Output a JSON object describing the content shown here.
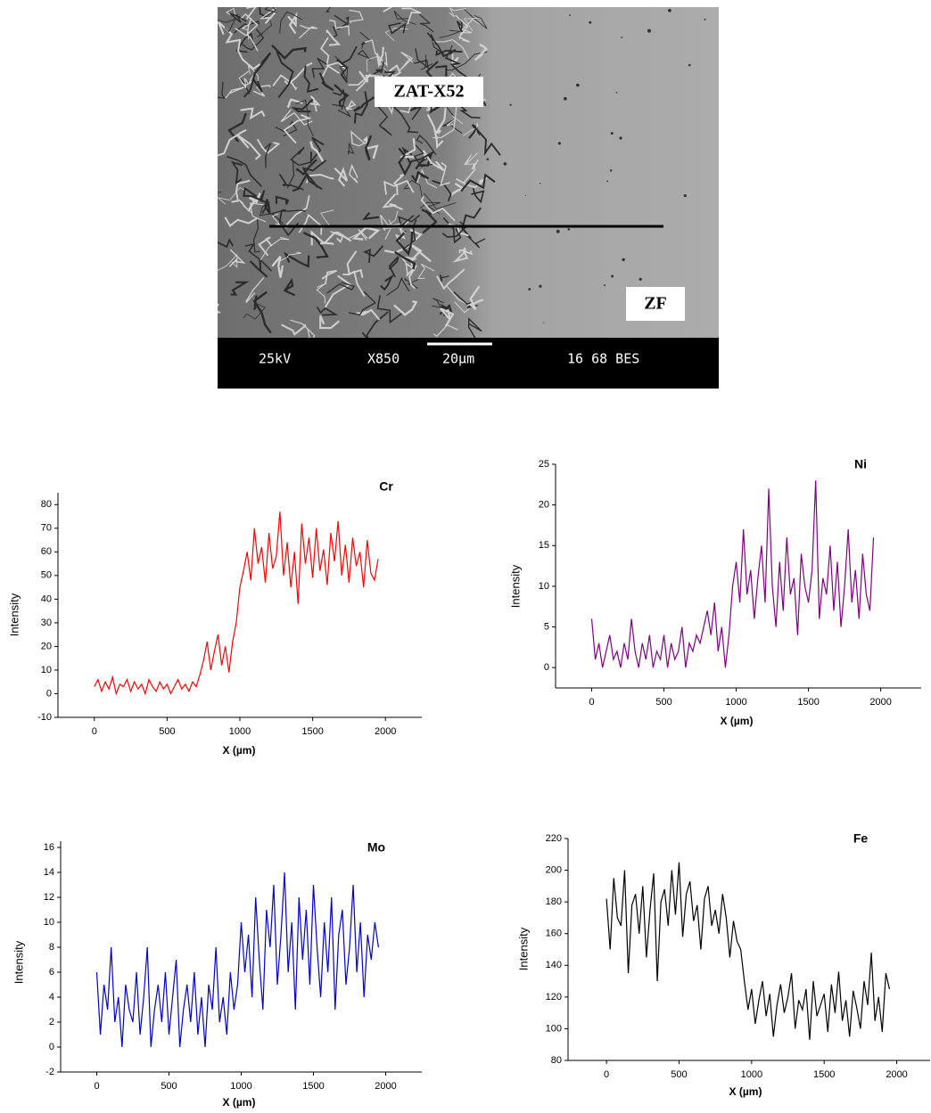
{
  "image": {
    "labels": [
      "ZAT-X52",
      "ZF"
    ],
    "info_bar": [
      "25kV",
      "X850",
      "20µm",
      "16 68 BES"
    ]
  },
  "chart_data": [
    {
      "type": "line",
      "title": "Cr",
      "x_label": "X (µm)",
      "y_label": "Intensity",
      "x": [
        0,
        25,
        50,
        75,
        100,
        125,
        150,
        175,
        200,
        225,
        250,
        275,
        300,
        325,
        350,
        375,
        400,
        425,
        450,
        475,
        500,
        525,
        550,
        575,
        600,
        625,
        650,
        675,
        700,
        725,
        750,
        775,
        800,
        825,
        850,
        875,
        900,
        925,
        950,
        975,
        1000,
        1025,
        1050,
        1075,
        1100,
        1125,
        1150,
        1175,
        1200,
        1225,
        1250,
        1275,
        1300,
        1325,
        1350,
        1375,
        1400,
        1425,
        1450,
        1475,
        1500,
        1525,
        1550,
        1575,
        1600,
        1625,
        1650,
        1675,
        1700,
        1725,
        1750,
        1775,
        1800,
        1825,
        1850,
        1875,
        1900,
        1925,
        1950
      ],
      "series": [
        {
          "name": "Cr",
          "color": "#ff0000",
          "values": [
            3,
            6,
            1,
            5,
            2,
            7,
            0,
            4,
            3,
            6,
            1,
            5,
            2,
            4,
            0,
            6,
            3,
            1,
            5,
            2,
            4,
            0,
            3,
            6,
            2,
            4,
            1,
            5,
            3,
            8,
            14,
            22,
            10,
            18,
            25,
            12,
            20,
            9,
            22,
            30,
            45,
            52,
            60,
            48,
            70,
            55,
            62,
            47,
            68,
            53,
            58,
            77,
            50,
            64,
            45,
            60,
            38,
            72,
            55,
            66,
            49,
            70,
            52,
            61,
            46,
            68,
            56,
            73,
            50,
            63,
            47,
            66,
            54,
            60,
            45,
            65,
            51,
            48,
            57
          ]
        }
      ],
      "xlim": [
        -250,
        2250
      ],
      "xticks": [
        0,
        500,
        1000,
        1500,
        2000
      ],
      "ylim": [
        -10,
        85
      ],
      "yticks": [
        -10,
        0,
        10,
        20,
        30,
        40,
        50,
        60,
        70,
        80
      ]
    },
    {
      "type": "line",
      "title": "Ni",
      "x_label": "X (µm)",
      "y_label": "Intensity",
      "x": [
        0,
        25,
        50,
        75,
        100,
        125,
        150,
        175,
        200,
        225,
        250,
        275,
        300,
        325,
        350,
        375,
        400,
        425,
        450,
        475,
        500,
        525,
        550,
        575,
        600,
        625,
        650,
        675,
        700,
        725,
        750,
        775,
        800,
        825,
        850,
        875,
        900,
        925,
        950,
        975,
        1000,
        1025,
        1050,
        1075,
        1100,
        1125,
        1150,
        1175,
        1200,
        1225,
        1250,
        1275,
        1300,
        1325,
        1350,
        1375,
        1400,
        1425,
        1450,
        1475,
        1500,
        1525,
        1550,
        1575,
        1600,
        1625,
        1650,
        1675,
        1700,
        1725,
        1750,
        1775,
        1800,
        1825,
        1850,
        1875,
        1900,
        1925,
        1950
      ],
      "series": [
        {
          "name": "Ni",
          "color": "#800080",
          "values": [
            6,
            1,
            3,
            0,
            2,
            4,
            1,
            2,
            0,
            3,
            1,
            6,
            2,
            0,
            3,
            1,
            4,
            0,
            2,
            1,
            4,
            0,
            3,
            1,
            2,
            5,
            0,
            3,
            2,
            4,
            3,
            5,
            7,
            4,
            8,
            2,
            5,
            0,
            4,
            10,
            13,
            8,
            17,
            9,
            12,
            6,
            11,
            15,
            8,
            22,
            10,
            5,
            13,
            7,
            16,
            9,
            11,
            4,
            14,
            10,
            8,
            12,
            23,
            6,
            11,
            9,
            15,
            7,
            13,
            5,
            10,
            17,
            8,
            12,
            6,
            14,
            9,
            7,
            16
          ]
        }
      ],
      "xlim": [
        -250,
        2280
      ],
      "xticks": [
        0,
        500,
        1000,
        1500,
        2000
      ],
      "ylim": [
        -2.5,
        25
      ],
      "yticks": [
        0,
        5,
        10,
        15,
        20,
        25
      ]
    },
    {
      "type": "line",
      "title": "Mo",
      "x_label": "X (µm)",
      "y_label": "Intensity",
      "x": [
        0,
        25,
        50,
        75,
        100,
        125,
        150,
        175,
        200,
        225,
        250,
        275,
        300,
        325,
        350,
        375,
        400,
        425,
        450,
        475,
        500,
        525,
        550,
        575,
        600,
        625,
        650,
        675,
        700,
        725,
        750,
        775,
        800,
        825,
        850,
        875,
        900,
        925,
        950,
        975,
        1000,
        1025,
        1050,
        1075,
        1100,
        1125,
        1150,
        1175,
        1200,
        1225,
        1250,
        1275,
        1300,
        1325,
        1350,
        1375,
        1400,
        1425,
        1450,
        1475,
        1500,
        1525,
        1550,
        1575,
        1600,
        1625,
        1650,
        1675,
        1700,
        1725,
        1750,
        1775,
        1800,
        1825,
        1850,
        1875,
        1900,
        1925,
        1950
      ],
      "series": [
        {
          "name": "Mo",
          "color": "#0000cc",
          "values": [
            6,
            1,
            5,
            3,
            8,
            2,
            4,
            0,
            5,
            3,
            2,
            6,
            1,
            4,
            8,
            0,
            3,
            5,
            2,
            6,
            1,
            4,
            7,
            0,
            3,
            5,
            2,
            6,
            1,
            4,
            0,
            5,
            3,
            8,
            2,
            4,
            1,
            6,
            3,
            5,
            10,
            6,
            9,
            4,
            12,
            7,
            3,
            11,
            8,
            13,
            5,
            9,
            14,
            6,
            10,
            3,
            12,
            7,
            11,
            5,
            13,
            8,
            4,
            10,
            6,
            12,
            3,
            9,
            11,
            5,
            8,
            13,
            6,
            10,
            4,
            9,
            7,
            10,
            8
          ]
        }
      ],
      "xlim": [
        -250,
        2250
      ],
      "xticks": [
        0,
        500,
        1000,
        1500,
        2000
      ],
      "ylim": [
        -2,
        16.5
      ],
      "yticks": [
        -2,
        0,
        2,
        4,
        6,
        8,
        10,
        12,
        14,
        16
      ]
    },
    {
      "type": "line",
      "title": "Fe",
      "x_label": "X (µm)",
      "y_label": "Intensity",
      "x": [
        0,
        25,
        50,
        75,
        100,
        125,
        150,
        175,
        200,
        225,
        250,
        275,
        300,
        325,
        350,
        375,
        400,
        425,
        450,
        475,
        500,
        525,
        550,
        575,
        600,
        625,
        650,
        675,
        700,
        725,
        750,
        775,
        800,
        825,
        850,
        875,
        900,
        925,
        950,
        975,
        1000,
        1025,
        1050,
        1075,
        1100,
        1125,
        1150,
        1175,
        1200,
        1225,
        1250,
        1275,
        1300,
        1325,
        1350,
        1375,
        1400,
        1425,
        1450,
        1475,
        1500,
        1525,
        1550,
        1575,
        1600,
        1625,
        1650,
        1675,
        1700,
        1725,
        1750,
        1775,
        1800,
        1825,
        1850,
        1875,
        1900,
        1925,
        1950
      ],
      "series": [
        {
          "name": "Fe",
          "color": "#000000",
          "values": [
            182,
            150,
            195,
            170,
            165,
            200,
            135,
            178,
            185,
            160,
            190,
            145,
            175,
            198,
            130,
            180,
            188,
            165,
            200,
            172,
            205,
            158,
            185,
            193,
            168,
            178,
            150,
            182,
            190,
            165,
            175,
            160,
            185,
            170,
            145,
            168,
            155,
            150,
            130,
            112,
            125,
            103,
            118,
            130,
            108,
            122,
            95,
            115,
            128,
            110,
            120,
            135,
            100,
            118,
            112,
            125,
            93,
            130,
            108,
            115,
            122,
            98,
            128,
            110,
            136,
            105,
            118,
            95,
            124,
            113,
            100,
            130,
            115,
            148,
            105,
            120,
            98,
            135,
            125
          ]
        }
      ],
      "xlim": [
        -265,
        2230
      ],
      "xticks": [
        0,
        500,
        1000,
        1500,
        2000
      ],
      "ylim": [
        80,
        220
      ],
      "yticks": [
        80,
        100,
        120,
        140,
        160,
        180,
        200,
        220
      ]
    }
  ]
}
